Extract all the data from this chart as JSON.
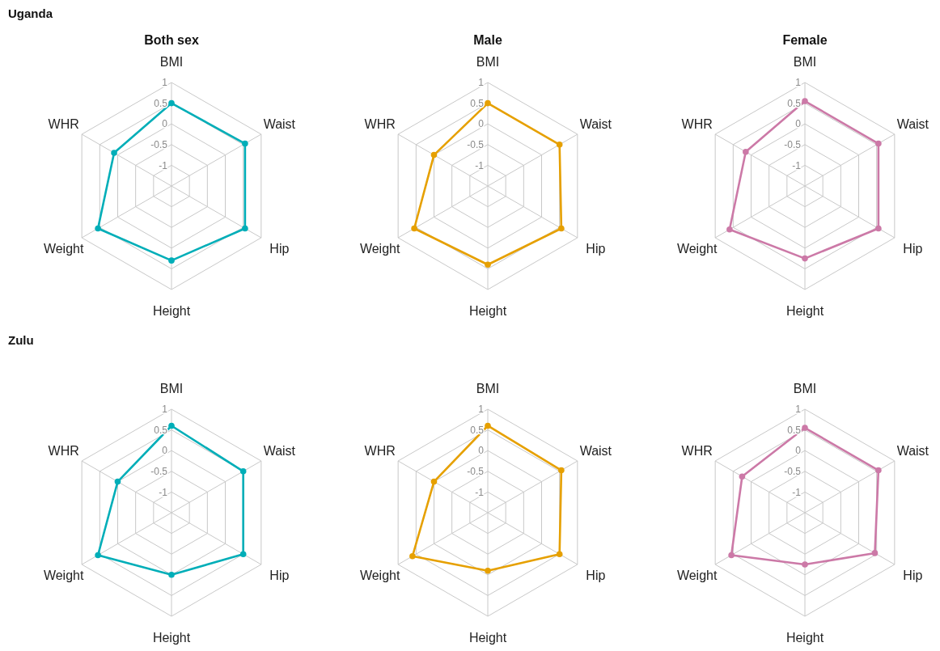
{
  "chart_data": [
    {
      "type": "radar",
      "title": "Both sex",
      "annotations": [
        "Uganda"
      ],
      "categories": [
        "BMI",
        "Waist",
        "Hip",
        "Height",
        "Weight",
        "WHR"
      ],
      "ylim": [
        -1.5,
        1
      ],
      "yticks": [
        -1,
        -0.5,
        0,
        0.5,
        1
      ],
      "grid": true,
      "marker": "circle",
      "series": [
        {
          "color": "#00aeb8",
          "values": [
            0.5,
            0.55,
            0.55,
            0.3,
            0.55,
            0.1
          ]
        }
      ]
    },
    {
      "type": "radar",
      "title": "Male",
      "categories": [
        "BMI",
        "Waist",
        "Hip",
        "Height",
        "Weight",
        "WHR"
      ],
      "ylim": [
        -1.5,
        1
      ],
      "yticks": [
        -1,
        -0.5,
        0,
        0.5,
        1
      ],
      "grid": true,
      "marker": "circle",
      "series": [
        {
          "color": "#e6a000",
          "values": [
            0.5,
            0.5,
            0.55,
            0.4,
            0.55,
            0
          ]
        }
      ]
    },
    {
      "type": "radar",
      "title": "Female",
      "categories": [
        "BMI",
        "Waist",
        "Hip",
        "Height",
        "Weight",
        "WHR"
      ],
      "ylim": [
        -1.5,
        1
      ],
      "yticks": [
        -1,
        -0.5,
        0,
        0.5,
        1
      ],
      "grid": true,
      "marker": "circle",
      "series": [
        {
          "color": "#cc79a7",
          "values": [
            0.55,
            0.55,
            0.55,
            0.25,
            0.6,
            0.15
          ]
        }
      ]
    },
    {
      "type": "radar",
      "annotations": [
        "Zulu"
      ],
      "categories": [
        "BMI",
        "Waist",
        "Hip",
        "Height",
        "Weight",
        "WHR"
      ],
      "ylim": [
        -1.5,
        1
      ],
      "yticks": [
        -1,
        -0.5,
        0,
        0.5,
        1
      ],
      "grid": true,
      "marker": "circle",
      "series": [
        {
          "color": "#00aeb8",
          "values": [
            0.6,
            0.5,
            0.5,
            0,
            0.55,
            0
          ]
        }
      ]
    },
    {
      "type": "radar",
      "categories": [
        "BMI",
        "Waist",
        "Hip",
        "Height",
        "Weight",
        "WHR"
      ],
      "ylim": [
        -1.5,
        1
      ],
      "yticks": [
        -1,
        -0.5,
        0,
        0.5,
        1
      ],
      "grid": true,
      "marker": "circle",
      "series": [
        {
          "color": "#e6a000",
          "values": [
            0.6,
            0.55,
            0.5,
            -0.1,
            0.6,
            0
          ]
        }
      ]
    },
    {
      "type": "radar",
      "categories": [
        "BMI",
        "Waist",
        "Hip",
        "Height",
        "Weight",
        "WHR"
      ],
      "ylim": [
        -1.5,
        1
      ],
      "yticks": [
        -1,
        -0.5,
        0,
        0.5,
        1
      ],
      "grid": true,
      "marker": "circle",
      "series": [
        {
          "color": "#cc79a7",
          "values": [
            0.55,
            0.55,
            0.45,
            -0.25,
            0.55,
            0.25
          ]
        }
      ]
    }
  ]
}
